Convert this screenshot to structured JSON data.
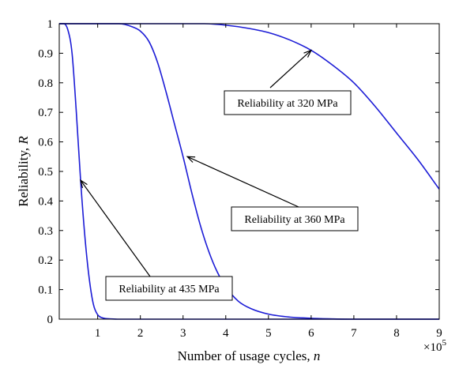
{
  "chart_data": {
    "type": "line",
    "xlabel_text": "Number of usage cycles,",
    "xlabel_var": "n",
    "ylabel_text": "Reliability,",
    "ylabel_var": "R",
    "x_multiplier_base": "×10",
    "x_multiplier_exp": "5",
    "xlim": [
      0.1,
      9
    ],
    "ylim": [
      0,
      1
    ],
    "xticks": [
      1,
      2,
      3,
      4,
      5,
      6,
      7,
      8,
      9
    ],
    "yticks": [
      0,
      0.1,
      0.2,
      0.3,
      0.4,
      0.5,
      0.6,
      0.7,
      0.8,
      0.9,
      1
    ],
    "ytick_labels": [
      "0",
      "0.1",
      "0.2",
      "0.3",
      "0.4",
      "0.5",
      "0.6",
      "0.7",
      "0.8",
      "0.9",
      "1"
    ],
    "grid": false,
    "line_color": "#1c1cd6",
    "series": [
      {
        "label": "Reliability at 435 MPa",
        "x": [
          0.1,
          0.2,
          0.3,
          0.4,
          0.5,
          0.6,
          0.7,
          0.8,
          0.9,
          1.0,
          1.1,
          1.2,
          1.3,
          1.5,
          2.0,
          3.0,
          5.0,
          7.0,
          9.0
        ],
        "y": [
          1.0,
          1.0,
          0.98,
          0.9,
          0.7,
          0.47,
          0.28,
          0.14,
          0.05,
          0.015,
          0.005,
          0.002,
          0.001,
          0,
          0,
          0,
          0,
          0,
          0
        ]
      },
      {
        "label": "Reliability at 360 MPa",
        "x": [
          0.1,
          1.0,
          1.5,
          1.8,
          2.0,
          2.2,
          2.4,
          2.6,
          2.8,
          3.0,
          3.2,
          3.4,
          3.6,
          3.8,
          4.0,
          4.3,
          4.6,
          5.0,
          5.5,
          6.0,
          6.5,
          7.0,
          8.0,
          9.0
        ],
        "y": [
          1.0,
          1.0,
          1.0,
          0.99,
          0.975,
          0.94,
          0.87,
          0.77,
          0.66,
          0.55,
          0.43,
          0.32,
          0.23,
          0.16,
          0.11,
          0.06,
          0.035,
          0.017,
          0.007,
          0.003,
          0.001,
          0,
          0,
          0
        ]
      },
      {
        "label": "Reliability at 320 MPa",
        "x": [
          0.1,
          3.0,
          3.5,
          4.0,
          4.5,
          5.0,
          5.5,
          6.0,
          6.5,
          7.0,
          7.5,
          8.0,
          8.5,
          9.0
        ],
        "y": [
          1.0,
          1.0,
          1.0,
          0.995,
          0.985,
          0.97,
          0.945,
          0.91,
          0.86,
          0.8,
          0.72,
          0.63,
          0.54,
          0.44
        ]
      }
    ],
    "annotations": [
      {
        "text": "Reliability at 320 MPa",
        "target": [
          6.0,
          0.91
        ]
      },
      {
        "text": "Reliability at 360 MPa",
        "target": [
          3.1,
          0.55
        ]
      },
      {
        "text": "Reliability at 435 MPa",
        "target": [
          0.6,
          0.47
        ]
      }
    ]
  }
}
